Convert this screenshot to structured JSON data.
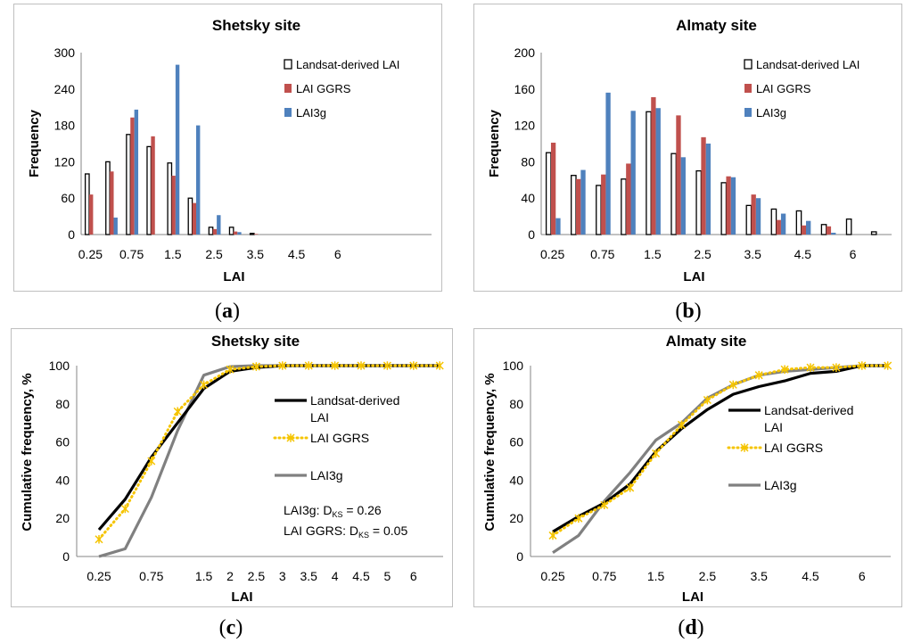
{
  "panels": {
    "a": {
      "caption_open": "(",
      "caption_letter": "a",
      "caption_close": ")"
    },
    "b": {
      "caption_open": "(",
      "caption_letter": "b",
      "caption_close": ")"
    },
    "c": {
      "caption_open": "(",
      "caption_letter": "c",
      "caption_close": ")"
    },
    "d": {
      "caption_open": "(",
      "caption_letter": "d",
      "caption_close": ")"
    }
  },
  "chart_data": [
    {
      "id": "a",
      "type": "bar",
      "title": "Shetsky site",
      "xlabel": "LAI",
      "ylabel": "Frequency",
      "ylim": [
        0,
        300
      ],
      "yticks": [
        "0",
        "60",
        "120",
        "180",
        "240",
        "300"
      ],
      "categories": [
        "0.25",
        "0.5",
        "0.75",
        "1",
        "1.25",
        "1.5",
        "1.75",
        "2",
        "2.5",
        "3",
        "3.5",
        "4",
        "4.5",
        "5",
        "5.5",
        "6",
        "6.5"
      ],
      "xtick_labels": [
        "0.25",
        "",
        "0.75",
        "",
        "1.5",
        "",
        "2.5",
        "",
        "3.5",
        "",
        "4.5",
        "",
        "6",
        "",
        "",
        "",
        ""
      ],
      "series": [
        {
          "name": "Landsat-derived LAI",
          "color": "#ffffff",
          "stroke": "#000000",
          "values": [
            100,
            120,
            165,
            145,
            118,
            60,
            12,
            12,
            2,
            0,
            0,
            0,
            0,
            0,
            0,
            0,
            0
          ]
        },
        {
          "name": "LAI GGRS",
          "color": "#c0504d",
          "values": [
            66,
            104,
            193,
            162,
            97,
            52,
            9,
            5,
            1,
            0,
            0,
            0,
            0,
            0,
            0,
            0,
            0
          ]
        },
        {
          "name": "LAI3g",
          "color": "#4f81bd",
          "values": [
            0,
            28,
            206,
            0,
            280,
            180,
            32,
            4,
            0,
            0,
            0,
            0,
            0,
            0,
            0,
            0,
            0
          ]
        }
      ]
    },
    {
      "id": "b",
      "type": "bar",
      "title": "Almaty site",
      "xlabel": "LAI",
      "ylabel": "Frequency",
      "ylim": [
        0,
        200
      ],
      "yticks": [
        "0",
        "40",
        "80",
        "120",
        "160",
        "200"
      ],
      "categories": [
        "0.25",
        "0.5",
        "0.75",
        "1",
        "1.5",
        "2",
        "2.5",
        "3",
        "3.5",
        "4",
        "4.5",
        "5",
        "6",
        "6.5"
      ],
      "xtick_labels": [
        "0.25",
        "",
        "0.75",
        "",
        "1.5",
        "",
        "2.5",
        "",
        "3.5",
        "",
        "4.5",
        "",
        "6",
        ""
      ],
      "series": [
        {
          "name": "Landsat-derived LAI",
          "color": "#ffffff",
          "stroke": "#000000",
          "values": [
            90,
            65,
            54,
            61,
            135,
            89,
            70,
            57,
            32,
            28,
            26,
            11,
            17,
            3
          ]
        },
        {
          "name": "LAI GGRS",
          "color": "#c0504d",
          "values": [
            101,
            61,
            66,
            78,
            151,
            131,
            107,
            64,
            44,
            16,
            10,
            9,
            0,
            0
          ]
        },
        {
          "name": "LAI3g",
          "color": "#4f81bd",
          "values": [
            18,
            71,
            156,
            136,
            139,
            85,
            100,
            63,
            40,
            23,
            15,
            2,
            0,
            0
          ]
        }
      ]
    },
    {
      "id": "c",
      "type": "line",
      "title": "Shetsky site",
      "xlabel": "LAI",
      "ylabel": "Cumulative frequency, %",
      "ylim": [
        0,
        100
      ],
      "yticks": [
        "0",
        "20",
        "40",
        "60",
        "80",
        "100"
      ],
      "categories": [
        "0.25",
        "0.5",
        "0.75",
        "1",
        "1.5",
        "2",
        "2.5",
        "3",
        "3.5",
        "4",
        "4.5",
        "5",
        "6",
        "6.5"
      ],
      "xtick_labels": [
        "0.25",
        "",
        "0.75",
        "",
        "1.5",
        "2",
        "2.5",
        "3",
        "3.5",
        "4",
        "4.5",
        "5",
        "6",
        ""
      ],
      "series": [
        {
          "name": "Landsat-derived LAI",
          "color": "#000000",
          "style": "solid",
          "values": [
            14,
            30,
            52,
            70,
            88,
            97,
            99,
            100,
            100,
            100,
            100,
            100,
            100,
            100
          ]
        },
        {
          "name": "LAI GGRS",
          "color": "#f5c400",
          "style": "dotted-star",
          "values": [
            9,
            25,
            50,
            76,
            90,
            98,
            99.5,
            100,
            100,
            100,
            100,
            100,
            100,
            100
          ]
        },
        {
          "name": "LAI3g",
          "color": "#808080",
          "style": "solid",
          "values": [
            0,
            4,
            31,
            66,
            95,
            99.5,
            100,
            100,
            100,
            100,
            100,
            100,
            100,
            100
          ]
        }
      ],
      "legend_labels": [
        "Landsat-derived",
        "LAI",
        "LAI GGRS",
        "LAI3g"
      ],
      "annotations": [
        {
          "prefix": "LAI3g: D",
          "sub": "KS",
          "suffix": " = 0.26"
        },
        {
          "prefix": "LAI GGRS: D",
          "sub": "KS",
          "suffix": " = 0.05"
        }
      ]
    },
    {
      "id": "d",
      "type": "line",
      "title": "Almaty site",
      "xlabel": "LAI",
      "ylabel": "Cumulative frequency, %",
      "ylim": [
        0,
        100
      ],
      "yticks": [
        "0",
        "20",
        "40",
        "60",
        "80",
        "100"
      ],
      "categories": [
        "0.25",
        "0.5",
        "0.75",
        "1",
        "1.5",
        "2",
        "2.5",
        "3",
        "3.5",
        "4",
        "4.5",
        "5",
        "6",
        "6.5"
      ],
      "xtick_labels": [
        "0.25",
        "",
        "0.75",
        "",
        "1.5",
        "",
        "2.5",
        "",
        "3.5",
        "",
        "4.5",
        "",
        "6",
        ""
      ],
      "series": [
        {
          "name": "Landsat-derived LAI",
          "color": "#000000",
          "style": "solid",
          "values": [
            13,
            21,
            28,
            38,
            55,
            67,
            77,
            85,
            89,
            92,
            96,
            97,
            100,
            100
          ]
        },
        {
          "name": "LAI GGRS",
          "color": "#f5c400",
          "style": "dotted-star",
          "values": [
            11,
            20,
            27,
            36,
            54,
            69,
            82,
            90,
            95,
            98,
            99,
            99,
            100,
            100
          ]
        },
        {
          "name": "LAI3g",
          "color": "#808080",
          "style": "solid",
          "values": [
            2,
            11,
            29,
            44,
            61,
            70,
            83,
            90,
            95,
            97,
            98,
            99,
            100,
            100
          ]
        }
      ],
      "legend_labels": [
        "Landsat-derived",
        "LAI",
        "LAI GGRS",
        "LAI3g"
      ]
    }
  ]
}
